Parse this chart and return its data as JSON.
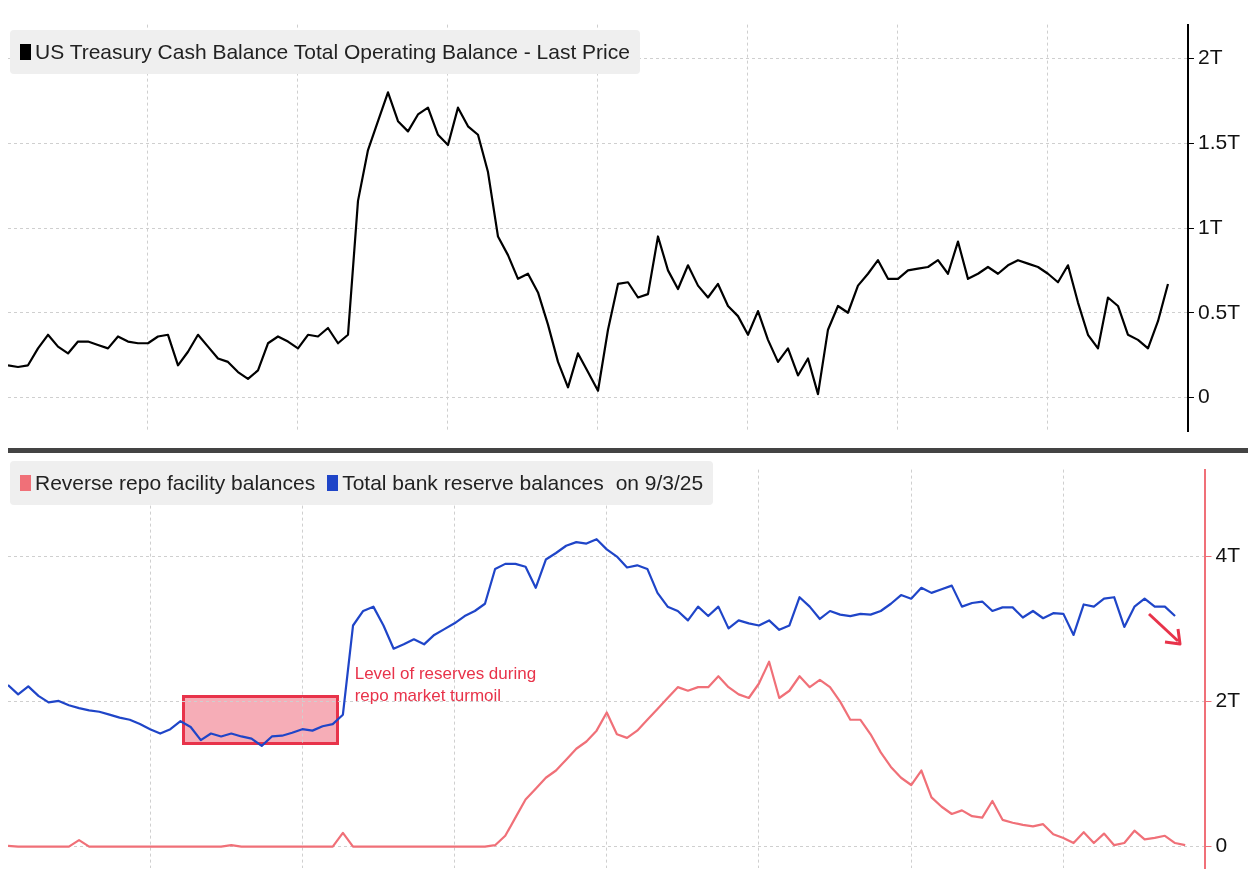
{
  "chart_data": [
    {
      "type": "line",
      "legend": "top left",
      "grid": true,
      "tick_labels": "y",
      "line_style": "solid",
      "categories": [
        null,
        null,
        null,
        null,
        null,
        null,
        null,
        null,
        null,
        null,
        null,
        null,
        null,
        null,
        null,
        null,
        null,
        null,
        null,
        null,
        null,
        null,
        null,
        null,
        null,
        null,
        null,
        null,
        null,
        null,
        null,
        null,
        null,
        null,
        null,
        null,
        null,
        null,
        null,
        null,
        null,
        null,
        null,
        null,
        null,
        null,
        null,
        null,
        null,
        null,
        null,
        null,
        null,
        null,
        null,
        null,
        null,
        null,
        null,
        null,
        null,
        null,
        null,
        null,
        null,
        null,
        null,
        null,
        null,
        null,
        null,
        null,
        null,
        null,
        null,
        null,
        null,
        null,
        null,
        null,
        null,
        null,
        null,
        null,
        null,
        null,
        null,
        null,
        null,
        null,
        null,
        null,
        null,
        null,
        null,
        null,
        null,
        null,
        null,
        null,
        null,
        null,
        null,
        null,
        null,
        null,
        null,
        null,
        null,
        null,
        null,
        null,
        null,
        null,
        null,
        null,
        null,
        null,
        null
      ],
      "ylim": [
        -0.2,
        2.2
      ],
      "yticks": [
        0,
        {
          "value": 0.5,
          "label": "0.5T"
        },
        {
          "value": 1,
          "label": "1T"
        },
        {
          "value": 1.5,
          "label": "1.5T"
        },
        {
          "value": 2,
          "label": "2T"
        }
      ],
      "series": [
        {
          "name": "US Treasury Cash Balance Total Operating Balance - Last Price",
          "color": "#000000",
          "values": [
            0.19,
            0.18,
            0.19,
            0.29,
            0.37,
            0.3,
            0.26,
            0.33,
            0.33,
            0.31,
            0.29,
            0.36,
            0.33,
            0.32,
            0.32,
            0.36,
            0.37,
            0.19,
            0.27,
            0.37,
            0.3,
            0.23,
            0.21,
            0.15,
            0.11,
            0.16,
            0.32,
            0.36,
            0.33,
            0.29,
            0.37,
            0.36,
            0.41,
            0.32,
            0.37,
            1.16,
            1.46,
            1.63,
            1.8,
            1.63,
            1.57,
            1.67,
            1.71,
            1.55,
            1.49,
            1.71,
            1.6,
            1.55,
            1.33,
            0.95,
            0.84,
            0.7,
            0.73,
            0.62,
            0.43,
            0.21,
            0.06,
            0.26,
            0.15,
            0.04,
            0.4,
            0.67,
            0.68,
            0.59,
            0.61,
            0.95,
            0.75,
            0.64,
            0.78,
            0.66,
            0.59,
            0.67,
            0.54,
            0.48,
            0.37,
            0.51,
            0.34,
            0.21,
            0.29,
            0.13,
            0.23,
            0.02,
            0.4,
            0.54,
            0.5,
            0.66,
            0.73,
            0.81,
            0.7,
            0.7,
            0.75,
            0.76,
            0.77,
            0.81,
            0.73,
            0.92,
            0.7,
            0.73,
            0.77,
            0.73,
            0.78,
            0.81,
            0.79,
            0.77,
            0.73,
            0.68,
            0.78,
            0.56,
            0.37,
            0.29,
            0.59,
            0.54,
            0.37,
            0.34,
            0.29,
            0.45,
            0.67,
            null,
            null
          ]
        }
      ]
    },
    {
      "type": "line",
      "legend": "top left",
      "grid": true,
      "tick_labels": "y",
      "line_style": "solid",
      "categories": [
        null,
        null,
        null,
        null,
        null,
        null,
        null,
        null,
        null,
        null,
        null,
        null,
        null,
        null,
        null,
        null,
        null,
        null,
        null,
        null,
        null,
        null,
        null,
        null,
        null,
        null,
        null,
        null,
        null,
        null,
        null,
        null,
        null,
        null,
        null,
        null,
        null,
        null,
        null,
        null,
        null,
        null,
        null,
        null,
        null,
        null,
        null,
        null,
        null,
        null,
        null,
        null,
        null,
        null,
        null,
        null,
        null,
        null,
        null,
        null,
        null,
        null,
        null,
        null,
        null,
        null,
        null,
        null,
        null,
        null,
        null,
        null,
        null,
        null,
        null,
        null,
        null,
        null,
        null,
        null,
        null,
        null,
        null,
        null,
        null,
        null,
        null,
        null,
        null,
        null,
        null,
        null,
        null,
        null,
        null,
        null,
        null,
        null,
        null,
        null,
        null,
        null,
        null,
        null,
        null,
        null,
        null,
        null,
        null,
        null,
        null,
        null,
        null,
        null,
        null,
        null,
        null,
        null,
        null
      ],
      "ylim": [
        -0.3,
        5.2
      ],
      "yticks": [
        0,
        {
          "value": 2,
          "label": "2T"
        },
        {
          "value": 4,
          "label": "4T"
        }
      ],
      "annotations": [
        "on 9/3/25",
        "Level of reserves during repo market turmoil"
      ],
      "series": [
        {
          "name": "Reverse repo facility balances",
          "color": "#f07078",
          "values": [
            0.01,
            0,
            0,
            0,
            0,
            0,
            0,
            0.09,
            0,
            0,
            0,
            0,
            0,
            0,
            0,
            0,
            0,
            0,
            0,
            0,
            0,
            0,
            0.02,
            0,
            0,
            0,
            0,
            0,
            0,
            0,
            0,
            0,
            0,
            0.19,
            0,
            0,
            0,
            0,
            0,
            0,
            0,
            0,
            0,
            0,
            0,
            0,
            0,
            0,
            0.02,
            0.15,
            0.4,
            0.65,
            0.8,
            0.95,
            1.05,
            1.2,
            1.35,
            1.45,
            1.6,
            1.85,
            1.55,
            1.5,
            1.6,
            1.75,
            1.9,
            2.05,
            2.2,
            2.15,
            2.2,
            2.2,
            2.35,
            2.2,
            2.1,
            2.05,
            2.25,
            2.55,
            2.05,
            2.15,
            2.35,
            2.2,
            2.3,
            2.2,
            2,
            1.75,
            1.75,
            1.55,
            1.3,
            1.1,
            0.95,
            0.85,
            1.05,
            0.68,
            0.55,
            0.45,
            0.5,
            0.42,
            0.4,
            0.63,
            0.37,
            0.33,
            0.3,
            0.28,
            0.31,
            0.17,
            0.12,
            0.05,
            0.2,
            0.05,
            0.18,
            0.02,
            0.05,
            0.22,
            0.1,
            0.12,
            0.15,
            0.05,
            0.02,
            null,
            null
          ]
        },
        {
          "name": "Total bank reserve balances",
          "color": "#1f45c8",
          "values": [
            2.23,
            2.1,
            2.21,
            2.08,
            1.99,
            2.01,
            1.95,
            1.91,
            1.88,
            1.86,
            1.82,
            1.78,
            1.75,
            1.69,
            1.62,
            1.56,
            1.62,
            1.73,
            1.65,
            1.47,
            1.56,
            1.52,
            1.56,
            1.52,
            1.49,
            1.39,
            1.52,
            1.53,
            1.57,
            1.62,
            1.6,
            1.66,
            1.69,
            1.82,
            3.05,
            3.25,
            3.31,
            3.05,
            2.73,
            2.79,
            2.86,
            2.79,
            2.92,
            3,
            3.08,
            3.18,
            3.25,
            3.35,
            3.83,
            3.9,
            3.9,
            3.86,
            3.57,
            3.96,
            4.05,
            4.15,
            4.2,
            4.18,
            4.24,
            4.1,
            4,
            3.85,
            3.88,
            3.83,
            3.5,
            3.31,
            3.25,
            3.12,
            3.31,
            3.18,
            3.31,
            3.01,
            3.12,
            3.08,
            3.05,
            3.12,
            2.99,
            3.05,
            3.44,
            3.31,
            3.14,
            3.25,
            3.2,
            3.18,
            3.21,
            3.2,
            3.25,
            3.35,
            3.47,
            3.42,
            3.57,
            3.5,
            3.55,
            3.6,
            3.31,
            3.36,
            3.38,
            3.25,
            3.3,
            3.3,
            3.16,
            3.25,
            3.15,
            3.22,
            3.21,
            2.92,
            3.34,
            3.31,
            3.42,
            3.44,
            3.03,
            3.31,
            3.42,
            3.31,
            3.31,
            3.18,
            null,
            null,
            null
          ]
        }
      ]
    }
  ]
}
